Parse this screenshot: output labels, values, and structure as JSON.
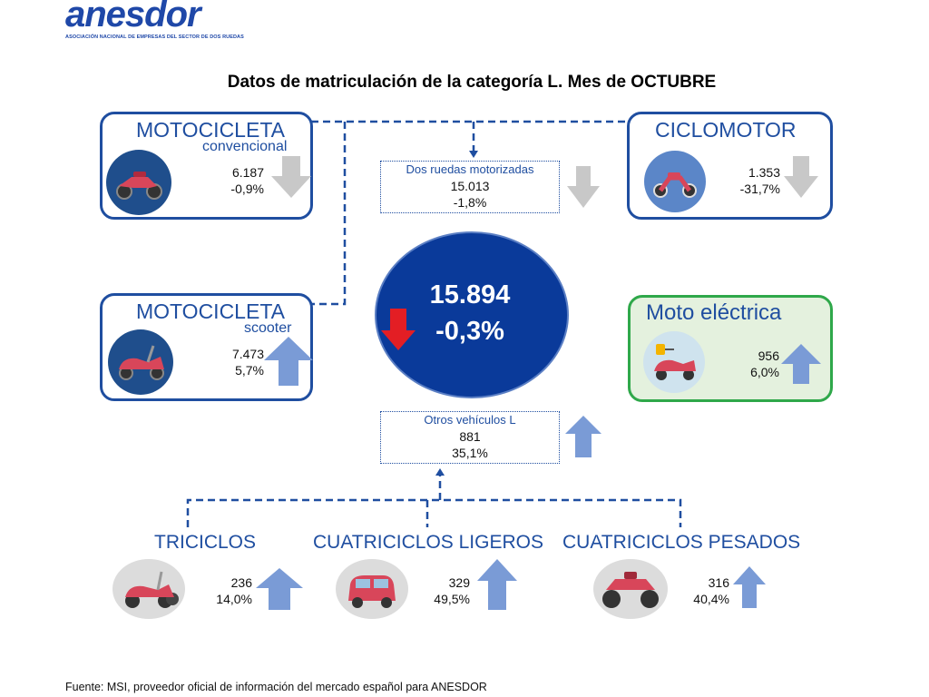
{
  "logo": {
    "name": "anesdor",
    "tagline": "ASOCIACIÓN NACIONAL DE EMPRESAS DEL SECTOR DE DOS RUEDAS"
  },
  "title": "Datos de matriculación de la categoría L. Mes de OCTUBRE",
  "total": {
    "value": "15.894",
    "change": "-0,3%",
    "trend": "down"
  },
  "cards": {
    "moto_convencional": {
      "title": "MOTOCICLETA",
      "subtitle": "convencional",
      "value": "6.187",
      "change": "-0,9%",
      "trend": "down",
      "icon": "motorcycle-icon"
    },
    "moto_scooter": {
      "title": "MOTOCICLETA",
      "subtitle": "scooter",
      "value": "7.473",
      "change": "5,7%",
      "trend": "up",
      "icon": "scooter-icon"
    },
    "ciclomotor": {
      "title": "CICLOMOTOR",
      "value": "1.353",
      "change": "-31,7%",
      "trend": "down",
      "icon": "moped-icon"
    },
    "moto_electrica": {
      "title": "Moto eléctrica",
      "value": "956",
      "change": "6,0%",
      "trend": "up",
      "icon": "electric-scooter-icon"
    }
  },
  "dos_ruedas": {
    "label": "Dos ruedas motorizadas",
    "value": "15.013",
    "change": "-1,8%",
    "trend": "down"
  },
  "otros": {
    "label": "Otros vehículos L",
    "value": "881",
    "change": "35,1%",
    "trend": "up"
  },
  "bottom": {
    "triciclos": {
      "title": "TRICICLOS",
      "value": "236",
      "change": "14,0%",
      "trend": "up",
      "icon": "tricycle-icon"
    },
    "cuatri_ligeros": {
      "title": "CUATRICICLOS LIGEROS",
      "value": "329",
      "change": "49,5%",
      "trend": "up",
      "icon": "microcar-icon"
    },
    "cuatri_pesados": {
      "title": "CUATRICICLOS PESADOS",
      "value": "316",
      "change": "40,4%",
      "trend": "up",
      "icon": "quad-icon"
    }
  },
  "colors": {
    "primary": "#1f4ea0",
    "down_grey": "#c8c8c8",
    "up_blue": "#7a9bd6",
    "total_down": "#e31e24",
    "green_border": "#2fa84a"
  },
  "footer": "Fuente: MSI, proveedor oficial de información del mercado español para ANESDOR"
}
